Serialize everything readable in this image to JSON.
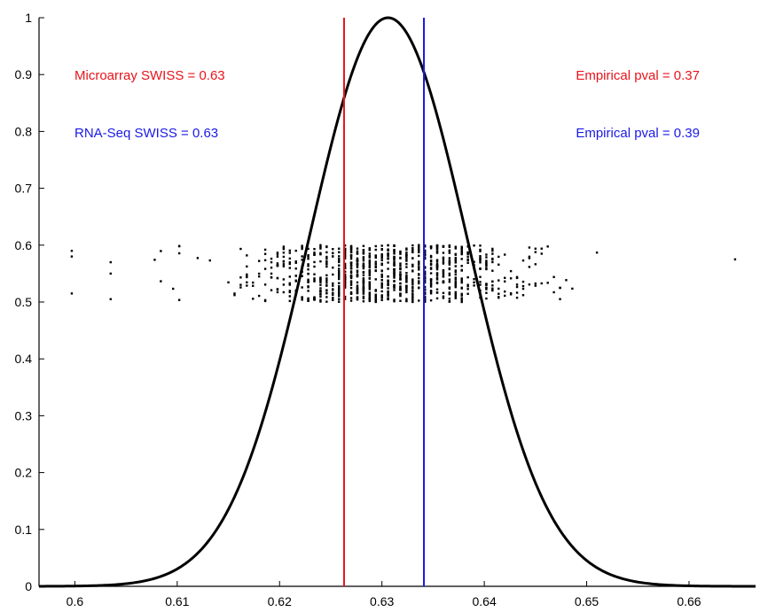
{
  "chart_data": {
    "type": "line",
    "title": "",
    "xlabel": "",
    "ylabel": "",
    "xlim": [
      0.5965,
      0.6665
    ],
    "ylim": [
      0,
      1
    ],
    "x_ticks": [
      "0.6",
      "0.61",
      "0.62",
      "0.63",
      "0.64",
      "0.65",
      "0.66"
    ],
    "y_ticks": [
      "0",
      "0.1",
      "0.2",
      "0.3",
      "0.4",
      "0.5",
      "0.6",
      "0.7",
      "0.8",
      "0.9",
      "1"
    ],
    "grid": false,
    "curve": {
      "type": "normal_density_scaled",
      "mean": 0.6306,
      "sd": 0.0078,
      "peak": 1.0,
      "color": "#000000"
    },
    "vertical_lines": [
      {
        "x": 0.6263,
        "color": "#e8141b"
      },
      {
        "x": 0.6341,
        "color": "#1a1ae6"
      }
    ],
    "scatter": {
      "color": "#000000",
      "y_range": [
        0.5,
        0.6
      ],
      "x_range": [
        0.5995,
        0.6645
      ]
    },
    "annotations": [
      {
        "text": "Microarray SWISS = 0.63",
        "color": "#e8141b",
        "side": "left",
        "row": 1
      },
      {
        "text": "RNA-Seq SWISS = 0.63",
        "color": "#1a1ae6",
        "side": "left",
        "row": 2
      },
      {
        "text": "Empirical pval = 0.37",
        "color": "#e8141b",
        "side": "right",
        "row": 1
      },
      {
        "text": "Empirical pval = 0.39",
        "color": "#1a1ae6",
        "side": "right",
        "row": 2
      }
    ]
  }
}
